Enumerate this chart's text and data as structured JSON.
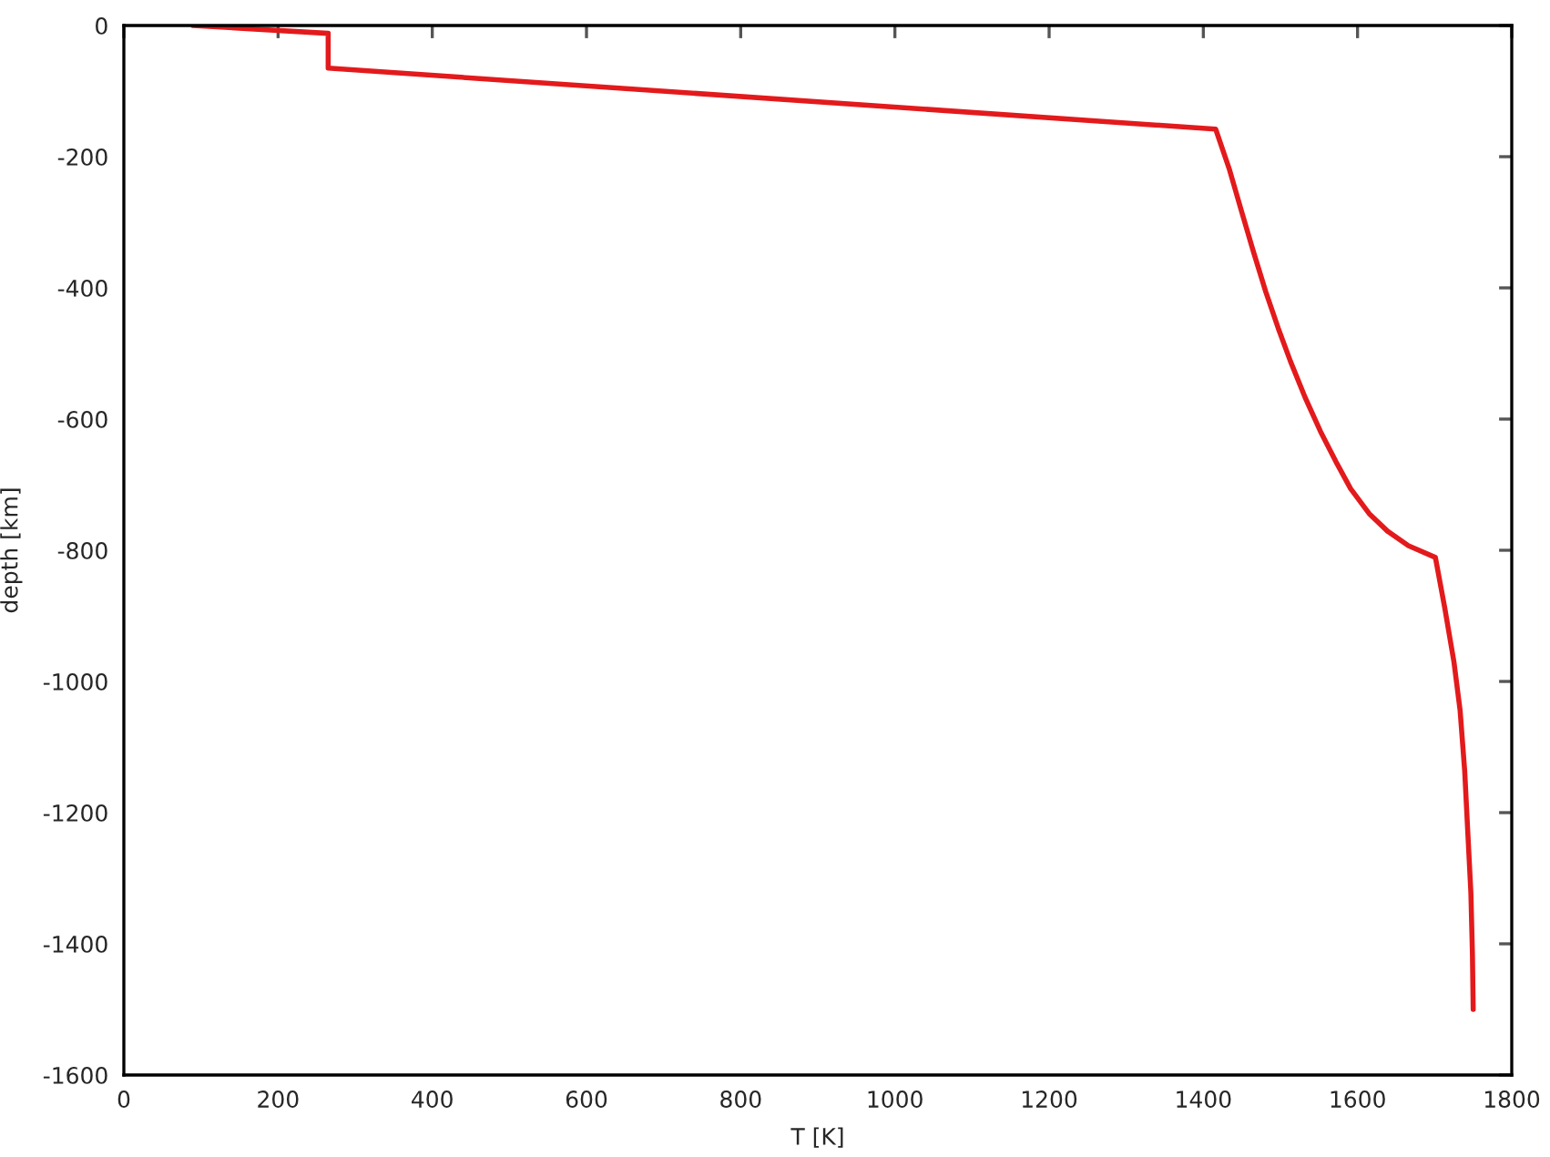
{
  "chart_data": {
    "type": "line",
    "xlabel": "T [K]",
    "ylabel": "depth [km]",
    "series": [
      {
        "color": "#e31a1c",
        "line_style": "solid",
        "x": [
          90,
          265,
          265,
          1416,
          1434,
          1450,
          1465,
          1481,
          1497,
          1513,
          1532,
          1552,
          1572,
          1591,
          1615,
          1639,
          1666,
          1701,
          1713,
          1725,
          1733,
          1739,
          1743,
          1747,
          1749,
          1750
        ],
        "values": [
          0,
          -12,
          -65,
          -158,
          -220,
          -285,
          -345,
          -406,
          -461,
          -512,
          -567,
          -619,
          -665,
          -706,
          -744,
          -771,
          -793,
          -811,
          -887,
          -970,
          -1044,
          -1137,
          -1230,
          -1322,
          -1415,
          -1500
        ]
      }
    ],
    "xlim": [
      0,
      1800
    ],
    "xticks": [
      0,
      200,
      400,
      600,
      800,
      1000,
      1200,
      1400,
      1600,
      1800
    ],
    "ylim": [
      -1600,
      0
    ],
    "yticks": [
      -1600,
      -1400,
      -1200,
      -1000,
      -800,
      -600,
      -400,
      -200,
      0
    ],
    "grid": false
  }
}
